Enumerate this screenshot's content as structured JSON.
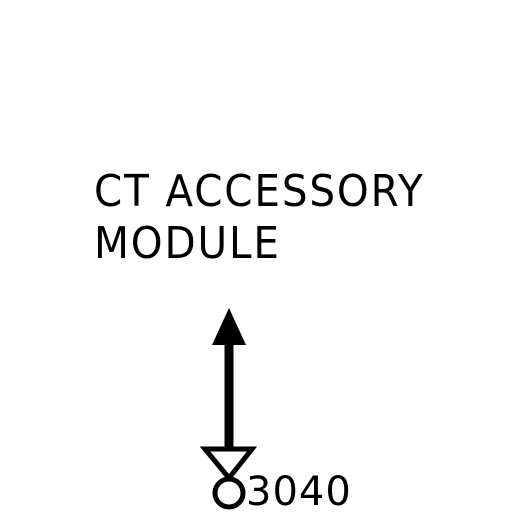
{
  "diagram": {
    "label_line1": "CT ACCESSORY",
    "label_line2": "MODULE",
    "callout_number": "3040",
    "stroke_color": "#000000",
    "background_color": "#ffffff"
  }
}
